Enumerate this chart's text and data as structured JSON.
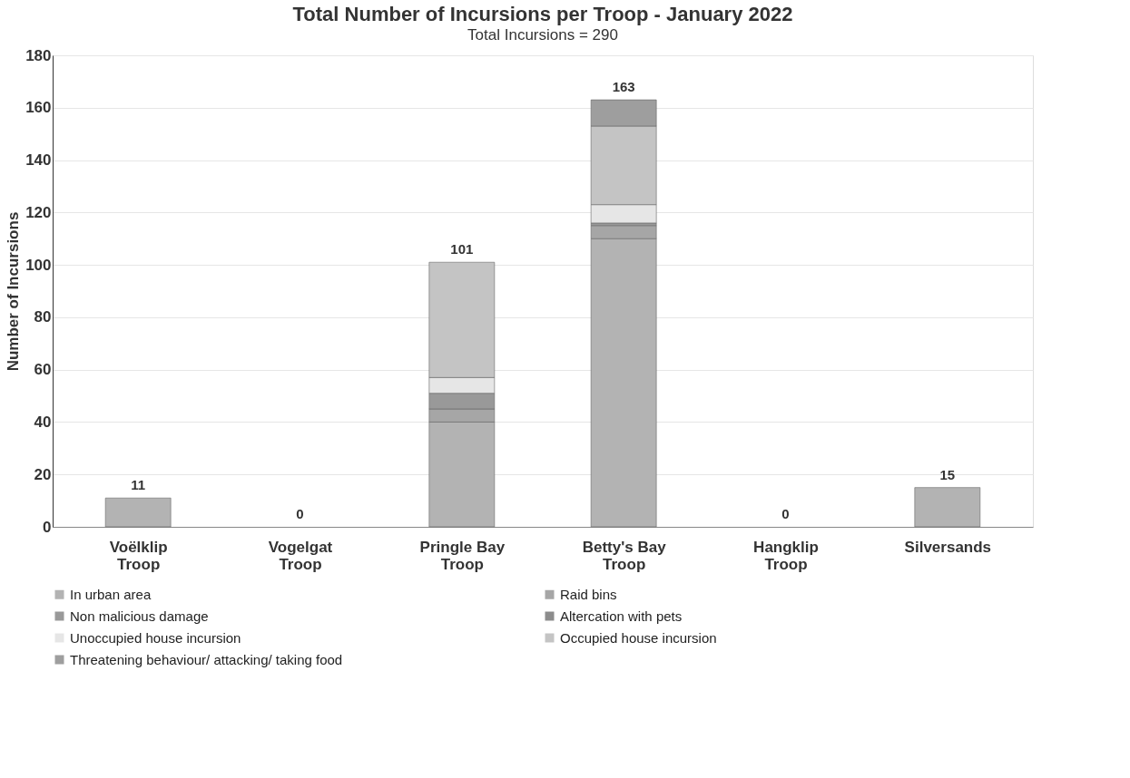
{
  "chart_data": {
    "type": "bar",
    "stacked": true,
    "title": "Total Number of Incursions per Troop - January 2022",
    "subtitle": "Total Incursions = 290",
    "ylabel": "Number of Incursions",
    "categories": [
      "Voëlklip Troop",
      "Vogelgat Troop",
      "Pringle Bay Troop",
      "Betty's Bay Troop",
      "Hangklip Troop",
      "Silversands"
    ],
    "series": [
      {
        "name": "In urban area",
        "color": "#b3b3b3",
        "values": [
          11,
          0,
          40,
          110,
          0,
          15
        ]
      },
      {
        "name": "Raid bins",
        "color": "#a6a6a6",
        "values": [
          0,
          0,
          5,
          5,
          0,
          0
        ]
      },
      {
        "name": "Non malicious damage",
        "color": "#999999",
        "values": [
          0,
          0,
          6,
          1,
          0,
          0
        ]
      },
      {
        "name": "Altercation with pets",
        "color": "#8c8c8c",
        "values": [
          0,
          0,
          0,
          0,
          0,
          0
        ]
      },
      {
        "name": "Unoccupied house incursion",
        "color": "#e6e6e6",
        "values": [
          0,
          0,
          6,
          7,
          0,
          0
        ]
      },
      {
        "name": "Occupied house incursion",
        "color": "#c4c4c4",
        "values": [
          0,
          0,
          44,
          30,
          0,
          0
        ]
      },
      {
        "name": "Threatening behaviour/ attacking/ taking food",
        "color": "#9e9e9e",
        "values": [
          0,
          0,
          0,
          10,
          0,
          0
        ]
      }
    ],
    "totals": [
      "11",
      "0",
      "101",
      "163",
      "0",
      "15"
    ],
    "ylim": [
      0,
      180
    ],
    "yticks": [
      0,
      20,
      40,
      60,
      80,
      100,
      120,
      140,
      160,
      180
    ],
    "grid": "y",
    "legend": "bottom"
  }
}
